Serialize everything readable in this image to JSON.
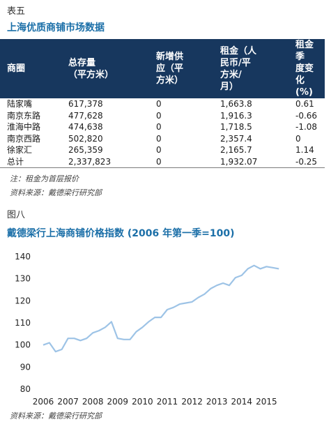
{
  "table_label": "表五",
  "table_title": "上海优质商铺市场数据",
  "table": {
    "headers": [
      "商圈",
      "总存量\n（平方米）",
      "新增供\n应（平\n方米）",
      "租金（人\n民币/平\n方米/\n月）",
      "租金季\n度变化\n(%)"
    ],
    "rows": [
      [
        "陆家嘴",
        "617,378",
        "0",
        "1,663.8",
        "0.61"
      ],
      [
        "南京东路",
        "477,628",
        "0",
        "1,916.3",
        "-0.66"
      ],
      [
        "淮海中路",
        "474,638",
        "0",
        "1,718.5",
        "-1.08"
      ],
      [
        "南京西路",
        "502,820",
        "0",
        "2,357.4",
        "0"
      ],
      [
        "徐家汇",
        "265,359",
        "0",
        "2,165.7",
        "1.14"
      ],
      [
        "总计",
        "2,337,823",
        "0",
        "1,932.07",
        "-0.25"
      ]
    ]
  },
  "table_note": "注：租金为首层报价",
  "table_source": "资料来源：戴德梁行研究部",
  "chart_label": "图八",
  "chart_title": "戴德梁行上海商铺价格指数 (2006 年第一季=100)",
  "chart_source": "资料来源：戴德梁行研究部",
  "chart_data": {
    "type": "line",
    "title": "戴德梁行上海商铺价格指数 (2006 年第一季=100)",
    "xlabel": "",
    "ylabel": "",
    "x_ticks": [
      "2006",
      "2007",
      "2008",
      "2009",
      "2010",
      "2011",
      "2012",
      "2013",
      "2014",
      "2015"
    ],
    "y_ticks": [
      80,
      90,
      100,
      110,
      120,
      130,
      140
    ],
    "ylim": [
      80,
      140
    ],
    "grid": false,
    "line_color": "#9dc3e6",
    "series": [
      {
        "x": [
          "2006Q1",
          "2006Q2",
          "2006Q3",
          "2006Q4",
          "2007Q1",
          "2007Q2",
          "2007Q3",
          "2007Q4",
          "2008Q1",
          "2008Q2",
          "2008Q3",
          "2008Q4",
          "2009Q1",
          "2009Q2",
          "2009Q3",
          "2009Q4",
          "2010Q1",
          "2010Q2",
          "2010Q3",
          "2010Q4",
          "2011Q1",
          "2011Q2",
          "2011Q3",
          "2011Q4",
          "2012Q1",
          "2012Q2",
          "2012Q3",
          "2012Q4",
          "2013Q1",
          "2013Q2",
          "2013Q3",
          "2013Q4",
          "2014Q1",
          "2014Q2",
          "2014Q3",
          "2014Q4",
          "2015Q1",
          "2015Q2",
          "2015Q3"
        ],
        "values": [
          100,
          101,
          97,
          98,
          103,
          103,
          102,
          103,
          105.5,
          106.5,
          108,
          110.5,
          103,
          102.5,
          102.5,
          106,
          108,
          110.5,
          112.5,
          112.5,
          116,
          117,
          118.5,
          119,
          119.5,
          121.5,
          123,
          125.5,
          127,
          128,
          127,
          130.5,
          131.5,
          134.5,
          136,
          134.5,
          135.5,
          135,
          134.5
        ]
      }
    ]
  }
}
